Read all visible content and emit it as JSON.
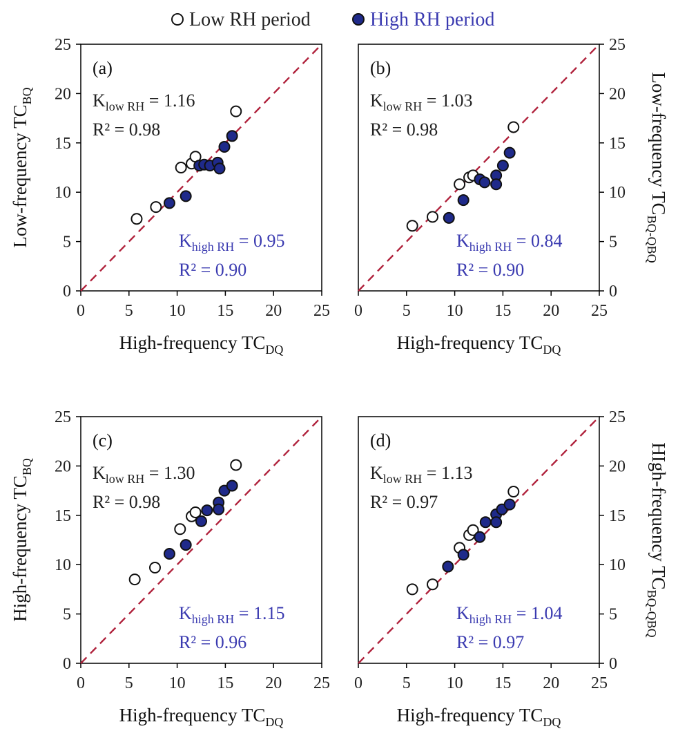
{
  "legend": {
    "low_label": "Low RH period",
    "high_label": "High RH period"
  },
  "colors": {
    "low_fill": "#ffffff",
    "high_fill": "#1f2a8a",
    "marker_edge": "#111111",
    "line": "#b0223c",
    "high_text": "#3a3ab0",
    "low_text": "#222222"
  },
  "chart_data": [
    {
      "type": "scatter",
      "panel_label": "(a)",
      "xlabel": "High-frequency TC",
      "xlabel_sub": "DQ",
      "ylabel": "Low-frequency TC",
      "ylabel_sub": "BQ",
      "xlim": [
        0,
        25
      ],
      "ylim": [
        0,
        25
      ],
      "xticks": [
        0,
        5,
        10,
        15,
        20,
        25
      ],
      "yticks": [
        0,
        5,
        10,
        15,
        20,
        25
      ],
      "reference_line": "1:1 dashed",
      "low": {
        "k_label": "K",
        "k_sub": "low RH",
        "k_value": "= 1.16",
        "r2": "R² = 0.98",
        "points": [
          [
            5.8,
            7.3
          ],
          [
            7.8,
            8.5
          ],
          [
            10.4,
            12.5
          ],
          [
            11.5,
            12.9
          ],
          [
            11.9,
            13.6
          ],
          [
            16.1,
            18.2
          ]
        ]
      },
      "high": {
        "k_label": "K",
        "k_sub": "high RH",
        "k_value": "= 0.95",
        "r2": "R² = 0.90",
        "points": [
          [
            9.2,
            8.9
          ],
          [
            10.9,
            9.6
          ],
          [
            12.3,
            12.7
          ],
          [
            12.8,
            12.8
          ],
          [
            13.4,
            12.7
          ],
          [
            14.2,
            13.0
          ],
          [
            14.4,
            12.4
          ],
          [
            14.9,
            14.6
          ],
          [
            15.7,
            15.7
          ]
        ]
      }
    },
    {
      "type": "scatter",
      "panel_label": "(b)",
      "xlabel": "High-frequency TC",
      "xlabel_sub": "DQ",
      "ylabel": "Low-frequency TC",
      "ylabel_sub": "BQ-QBQ",
      "xlim": [
        0,
        25
      ],
      "ylim": [
        0,
        25
      ],
      "xticks": [
        0,
        5,
        10,
        15,
        20,
        25
      ],
      "yticks": [
        0,
        5,
        10,
        15,
        20,
        25
      ],
      "reference_line": "1:1 dashed",
      "low": {
        "k_label": "K",
        "k_sub": "low RH",
        "k_value": "= 1.03",
        "r2": "R² = 0.98",
        "points": [
          [
            5.6,
            6.6
          ],
          [
            7.7,
            7.5
          ],
          [
            10.5,
            10.8
          ],
          [
            11.5,
            11.5
          ],
          [
            11.9,
            11.7
          ],
          [
            16.1,
            16.6
          ]
        ]
      },
      "high": {
        "k_label": "K",
        "k_sub": "high RH",
        "k_value": "= 0.84",
        "r2": "R² = 0.90",
        "points": [
          [
            9.4,
            7.4
          ],
          [
            10.9,
            9.2
          ],
          [
            12.6,
            11.3
          ],
          [
            13.1,
            11.0
          ],
          [
            14.3,
            11.7
          ],
          [
            14.3,
            10.8
          ],
          [
            15.0,
            12.7
          ],
          [
            15.7,
            14.0
          ]
        ]
      }
    },
    {
      "type": "scatter",
      "panel_label": "(c)",
      "xlabel": "High-frequency TC",
      "xlabel_sub": "DQ",
      "ylabel": "High-frequency TC",
      "ylabel_sub": "BQ",
      "xlim": [
        0,
        25
      ],
      "ylim": [
        0,
        25
      ],
      "xticks": [
        0,
        5,
        10,
        15,
        20,
        25
      ],
      "yticks": [
        0,
        5,
        10,
        15,
        20,
        25
      ],
      "reference_line": "1:1 dashed",
      "low": {
        "k_label": "K",
        "k_sub": "low RH",
        "k_value": "= 1.30",
        "r2": "R² = 0.98",
        "points": [
          [
            5.6,
            8.5
          ],
          [
            7.7,
            9.7
          ],
          [
            10.3,
            13.6
          ],
          [
            11.5,
            14.9
          ],
          [
            11.9,
            15.3
          ],
          [
            16.1,
            20.1
          ]
        ]
      },
      "high": {
        "k_label": "K",
        "k_sub": "high RH",
        "k_value": "= 1.15",
        "r2": "R² = 0.96",
        "points": [
          [
            9.2,
            11.1
          ],
          [
            10.9,
            12.0
          ],
          [
            12.5,
            14.4
          ],
          [
            13.1,
            15.5
          ],
          [
            14.3,
            16.3
          ],
          [
            14.3,
            15.6
          ],
          [
            14.9,
            17.5
          ],
          [
            15.7,
            18.0
          ]
        ]
      }
    },
    {
      "type": "scatter",
      "panel_label": "(d)",
      "xlabel": "High-frequency TC",
      "xlabel_sub": "DQ",
      "ylabel": "HIgh-frequency TC",
      "ylabel_sub": "BQ-QBQ",
      "xlim": [
        0,
        25
      ],
      "ylim": [
        0,
        25
      ],
      "xticks": [
        0,
        5,
        10,
        15,
        20,
        25
      ],
      "yticks": [
        0,
        5,
        10,
        15,
        20,
        25
      ],
      "reference_line": "1:1 dashed",
      "low": {
        "k_label": "K",
        "k_sub": "low RH",
        "k_value": "= 1.13",
        "r2": "R² = 0.97",
        "points": [
          [
            5.6,
            7.5
          ],
          [
            7.7,
            8.0
          ],
          [
            10.5,
            11.7
          ],
          [
            11.5,
            13.0
          ],
          [
            11.9,
            13.5
          ],
          [
            16.1,
            17.4
          ]
        ]
      },
      "high": {
        "k_label": "K",
        "k_sub": "high RH",
        "k_value": "= 1.04",
        "r2": "R² = 0.97",
        "points": [
          [
            9.3,
            9.8
          ],
          [
            10.9,
            11.0
          ],
          [
            12.6,
            12.8
          ],
          [
            13.2,
            14.3
          ],
          [
            14.3,
            15.1
          ],
          [
            14.3,
            14.3
          ],
          [
            14.9,
            15.6
          ],
          [
            15.7,
            16.1
          ]
        ]
      }
    }
  ]
}
